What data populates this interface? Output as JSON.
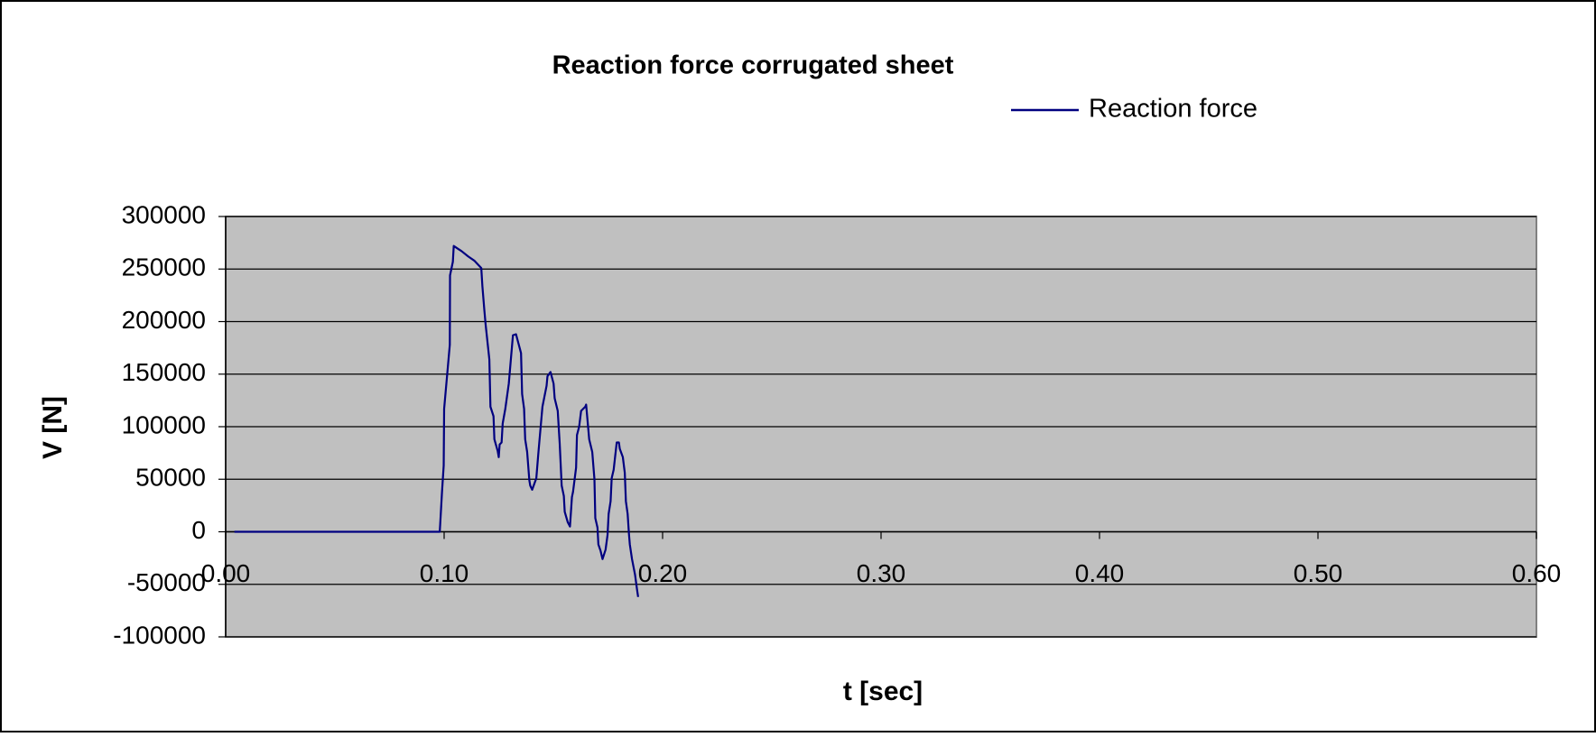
{
  "chart_data": {
    "type": "line",
    "title": "Reaction force corrugated sheet",
    "xlabel": "t [sec]",
    "ylabel": "V [N]",
    "xlim": [
      0,
      0.6
    ],
    "xticks": [
      {
        "value": 0,
        "label": "0.00"
      },
      {
        "value": 0.1,
        "label": "0.10"
      },
      {
        "value": 0.2,
        "label": "0.20"
      },
      {
        "value": 0.3,
        "label": "0.30"
      },
      {
        "value": 0.4,
        "label": "0.40"
      },
      {
        "value": 0.5,
        "label": "0.50"
      },
      {
        "value": 0.6,
        "label": "0.60"
      }
    ],
    "ylim": [
      -100000,
      300000
    ],
    "yticks": [
      -100000,
      -50000,
      0,
      50000,
      100000,
      150000,
      200000,
      250000,
      300000
    ],
    "grid": true,
    "legend": "top-right",
    "background": "#c0c0c0",
    "x": [
      0.004,
      0.098,
      0.099,
      0.0998,
      0.1,
      0.1026,
      0.1027,
      0.104,
      0.1044,
      0.1058,
      0.108,
      0.111,
      0.1138,
      0.117,
      0.1175,
      0.1184,
      0.119,
      0.1207,
      0.1212,
      0.1226,
      0.123,
      0.1245,
      0.125,
      0.1254,
      0.1263,
      0.1268,
      0.128,
      0.1296,
      0.1305,
      0.1315,
      0.1329,
      0.1352,
      0.1357,
      0.1366,
      0.1371,
      0.138,
      0.139,
      0.1394,
      0.1403,
      0.1422,
      0.1431,
      0.1436,
      0.145,
      0.1469,
      0.1473,
      0.1487,
      0.1501,
      0.1506,
      0.152,
      0.1529,
      0.1538,
      0.1548,
      0.1552,
      0.1566,
      0.1576,
      0.1585,
      0.159,
      0.1604,
      0.1608,
      0.1618,
      0.1627,
      0.1646,
      0.165,
      0.1664,
      0.1678,
      0.1688,
      0.1692,
      0.1702,
      0.1706,
      0.1716,
      0.1725,
      0.1739,
      0.1748,
      0.1753,
      0.1762,
      0.1767,
      0.1776,
      0.179,
      0.18,
      0.1804,
      0.1818,
      0.1827,
      0.1832,
      0.184,
      0.1846,
      0.185,
      0.186,
      0.1874,
      0.1883,
      0.1888
    ],
    "series": [
      {
        "name": "Reaction force",
        "color": "#000080",
        "values": [
          0,
          0,
          37000,
          63000,
          117000,
          178000,
          244000,
          257000,
          272000,
          270000,
          267000,
          262000,
          258000,
          251000,
          234000,
          211000,
          197000,
          164000,
          119000,
          110000,
          88000,
          77000,
          71000,
          83000,
          85000,
          103000,
          117000,
          141000,
          163000,
          187000,
          188000,
          170000,
          131000,
          117000,
          88000,
          76000,
          49000,
          44000,
          40000,
          51000,
          74000,
          86000,
          119000,
          139000,
          148000,
          152000,
          141000,
          127000,
          115000,
          84000,
          44000,
          34000,
          19000,
          9000,
          5000,
          33000,
          38000,
          61000,
          92000,
          100000,
          115000,
          119000,
          121000,
          88000,
          76000,
          50000,
          13000,
          4000,
          -12000,
          -18000,
          -26000,
          -17000,
          -3000,
          17000,
          29000,
          51000,
          59000,
          85000,
          85000,
          79000,
          71000,
          56000,
          29000,
          17000,
          -2000,
          -12000,
          -26000,
          -41000,
          -55000,
          -62000
        ]
      }
    ]
  }
}
